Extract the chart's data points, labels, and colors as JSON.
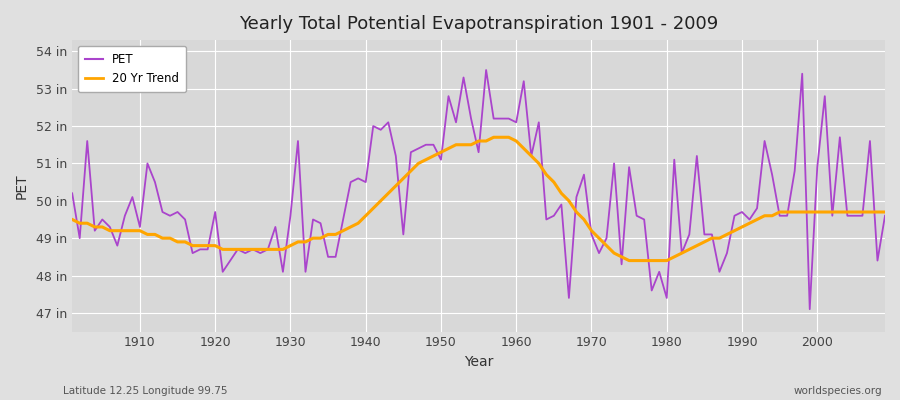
{
  "title": "Yearly Total Potential Evapotranspiration 1901 - 2009",
  "xlabel": "Year",
  "ylabel": "PET",
  "subtitle_left": "Latitude 12.25 Longitude 99.75",
  "subtitle_right": "worldspecies.org",
  "pet_color": "#aa44cc",
  "trend_color": "#ffa500",
  "bg_color": "#e0e0e0",
  "plot_bg_color": "#d8d8d8",
  "grid_color": "#ffffff",
  "ylim": [
    46.5,
    54.3
  ],
  "ytick_labels": [
    "47 in",
    "48 in",
    "49 in",
    "50 in",
    "51 in",
    "52 in",
    "53 in",
    "54 in"
  ],
  "ytick_values": [
    47,
    48,
    49,
    50,
    51,
    52,
    53,
    54
  ],
  "years": [
    1901,
    1902,
    1903,
    1904,
    1905,
    1906,
    1907,
    1908,
    1909,
    1910,
    1911,
    1912,
    1913,
    1914,
    1915,
    1916,
    1917,
    1918,
    1919,
    1920,
    1921,
    1922,
    1923,
    1924,
    1925,
    1926,
    1927,
    1928,
    1929,
    1930,
    1931,
    1932,
    1933,
    1934,
    1935,
    1936,
    1937,
    1938,
    1939,
    1940,
    1941,
    1942,
    1943,
    1944,
    1945,
    1946,
    1947,
    1948,
    1949,
    1950,
    1951,
    1952,
    1953,
    1954,
    1955,
    1956,
    1957,
    1958,
    1959,
    1960,
    1961,
    1962,
    1963,
    1964,
    1965,
    1966,
    1967,
    1968,
    1969,
    1970,
    1971,
    1972,
    1973,
    1974,
    1975,
    1976,
    1977,
    1978,
    1979,
    1980,
    1981,
    1982,
    1983,
    1984,
    1985,
    1986,
    1987,
    1988,
    1989,
    1990,
    1991,
    1992,
    1993,
    1994,
    1995,
    1996,
    1997,
    1998,
    1999,
    2000,
    2001,
    2002,
    2003,
    2004,
    2005,
    2006,
    2007,
    2008,
    2009
  ],
  "pet_values": [
    50.2,
    49.0,
    51.6,
    49.2,
    49.5,
    49.3,
    48.8,
    49.6,
    50.1,
    49.3,
    51.0,
    50.5,
    49.7,
    49.6,
    49.7,
    49.5,
    48.6,
    48.7,
    48.7,
    49.7,
    48.1,
    48.4,
    48.7,
    48.6,
    48.7,
    48.6,
    48.7,
    49.3,
    48.1,
    49.6,
    51.6,
    48.1,
    49.5,
    49.4,
    48.5,
    48.5,
    49.5,
    50.5,
    50.6,
    50.5,
    52.0,
    51.9,
    52.1,
    51.2,
    49.1,
    51.3,
    51.4,
    51.5,
    51.5,
    51.1,
    52.8,
    52.1,
    53.3,
    52.2,
    51.3,
    53.5,
    52.2,
    52.2,
    52.2,
    52.1,
    53.2,
    51.2,
    52.1,
    49.5,
    49.6,
    49.9,
    47.4,
    50.1,
    50.7,
    49.1,
    48.6,
    49.0,
    51.0,
    48.3,
    50.9,
    49.6,
    49.5,
    47.6,
    48.1,
    47.4,
    51.1,
    48.6,
    49.1,
    51.2,
    49.1,
    49.1,
    48.1,
    48.6,
    49.6,
    49.7,
    49.5,
    49.8,
    51.6,
    50.7,
    49.6,
    49.6,
    50.8,
    53.4,
    47.1,
    50.9,
    52.8,
    49.6,
    51.7,
    49.6,
    49.6,
    49.6,
    51.6,
    48.4,
    49.6
  ],
  "trend_values": [
    49.5,
    49.4,
    49.4,
    49.3,
    49.3,
    49.2,
    49.2,
    49.2,
    49.2,
    49.2,
    49.1,
    49.1,
    49.0,
    49.0,
    48.9,
    48.9,
    48.8,
    48.8,
    48.8,
    48.8,
    48.7,
    48.7,
    48.7,
    48.7,
    48.7,
    48.7,
    48.7,
    48.7,
    48.7,
    48.8,
    48.9,
    48.9,
    49.0,
    49.0,
    49.1,
    49.1,
    49.2,
    49.3,
    49.4,
    49.6,
    49.8,
    50.0,
    50.2,
    50.4,
    50.6,
    50.8,
    51.0,
    51.1,
    51.2,
    51.3,
    51.4,
    51.5,
    51.5,
    51.5,
    51.6,
    51.6,
    51.7,
    51.7,
    51.7,
    51.6,
    51.4,
    51.2,
    51.0,
    50.7,
    50.5,
    50.2,
    50.0,
    49.7,
    49.5,
    49.2,
    49.0,
    48.8,
    48.6,
    48.5,
    48.4,
    48.4,
    48.4,
    48.4,
    48.4,
    48.4,
    48.5,
    48.6,
    48.7,
    48.8,
    48.9,
    49.0,
    49.0,
    49.1,
    49.2,
    49.3,
    49.4,
    49.5,
    49.6,
    49.6,
    49.7,
    49.7,
    49.7,
    49.7,
    49.7,
    49.7,
    49.7,
    49.7,
    49.7,
    49.7,
    49.7,
    49.7,
    49.7,
    49.7,
    49.7
  ]
}
